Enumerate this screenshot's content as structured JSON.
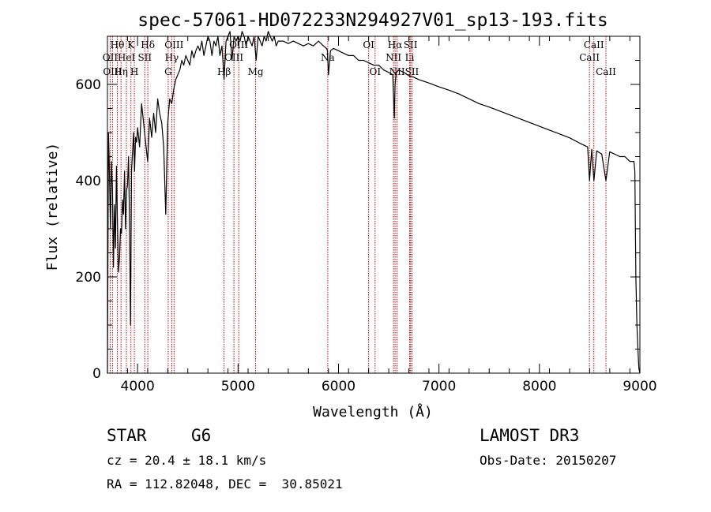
{
  "chart_data": {
    "type": "line",
    "title": "spec-57061-HD072233N294927V01_sp13-193.fits",
    "xlabel": "Wavelength (Å)",
    "ylabel": "Flux (relative)",
    "xlim": [
      3700,
      9000
    ],
    "ylim": [
      0,
      700
    ],
    "x_ticks": [
      4000,
      5000,
      6000,
      7000,
      8000,
      9000
    ],
    "y_ticks": [
      0,
      200,
      400,
      600
    ],
    "series": [
      {
        "name": "flux",
        "x": [
          3700,
          3710,
          3720,
          3730,
          3740,
          3750,
          3760,
          3770,
          3780,
          3790,
          3800,
          3810,
          3820,
          3830,
          3840,
          3850,
          3860,
          3870,
          3880,
          3890,
          3900,
          3910,
          3920,
          3930,
          3940,
          3950,
          3960,
          3970,
          3980,
          3990,
          4000,
          4020,
          4040,
          4060,
          4080,
          4100,
          4120,
          4140,
          4160,
          4180,
          4200,
          4220,
          4240,
          4260,
          4280,
          4300,
          4320,
          4340,
          4360,
          4380,
          4400,
          4420,
          4440,
          4460,
          4480,
          4500,
          4520,
          4540,
          4560,
          4580,
          4600,
          4620,
          4640,
          4660,
          4680,
          4700,
          4720,
          4740,
          4760,
          4780,
          4800,
          4820,
          4840,
          4861,
          4880,
          4900,
          4920,
          4940,
          4960,
          4980,
          5000,
          5020,
          5040,
          5060,
          5080,
          5100,
          5120,
          5140,
          5160,
          5180,
          5200,
          5220,
          5240,
          5260,
          5280,
          5300,
          5320,
          5340,
          5360,
          5380,
          5400,
          5450,
          5500,
          5550,
          5600,
          5650,
          5700,
          5750,
          5800,
          5850,
          5880,
          5890,
          5900,
          5920,
          5950,
          6000,
          6050,
          6100,
          6150,
          6200,
          6250,
          6300,
          6350,
          6400,
          6450,
          6500,
          6540,
          6555,
          6563,
          6575,
          6600,
          6650,
          6700,
          6750,
          6800,
          6900,
          7000,
          7100,
          7200,
          7300,
          7400,
          7500,
          7600,
          7700,
          7800,
          7900,
          8000,
          8100,
          8200,
          8300,
          8400,
          8480,
          8498,
          8520,
          8542,
          8570,
          8620,
          8662,
          8700,
          8750,
          8800,
          8850,
          8900,
          8940,
          8950,
          8960,
          8970,
          8980,
          8990,
          9000
        ],
        "values": [
          0,
          500,
          420,
          300,
          440,
          380,
          220,
          350,
          260,
          430,
          310,
          210,
          240,
          300,
          290,
          360,
          330,
          420,
          300,
          380,
          390,
          450,
          310,
          100,
          420,
          460,
          500,
          420,
          490,
          480,
          510,
          470,
          560,
          520,
          480,
          440,
          530,
          490,
          540,
          500,
          570,
          540,
          520,
          470,
          330,
          520,
          570,
          560,
          590,
          610,
          620,
          630,
          650,
          640,
          660,
          650,
          640,
          670,
          655,
          670,
          680,
          670,
          690,
          660,
          680,
          700,
          690,
          660,
          690,
          680,
          700,
          660,
          680,
          610,
          690,
          700,
          710,
          650,
          700,
          690,
          700,
          690,
          710,
          700,
          680,
          700,
          690,
          680,
          700,
          650,
          700,
          690,
          680,
          700,
          690,
          710,
          700,
          690,
          700,
          680,
          690,
          690,
          685,
          690,
          685,
          680,
          685,
          680,
          690,
          680,
          675,
          670,
          620,
          670,
          675,
          670,
          665,
          660,
          660,
          650,
          650,
          645,
          640,
          640,
          630,
          625,
          620,
          530,
          600,
          625,
          630,
          625,
          618,
          615,
          610,
          603,
          595,
          588,
          580,
          570,
          560,
          553,
          545,
          537,
          529,
          521,
          513,
          505,
          497,
          489,
          478,
          470,
          400,
          465,
          400,
          462,
          455,
          400,
          460,
          455,
          450,
          450,
          440,
          440,
          420,
          200,
          100,
          50,
          10,
          0
        ]
      }
    ],
    "line_annotations": [
      {
        "label": "Hθ",
        "wavelength": 3798,
        "row": 0
      },
      {
        "label": "OII",
        "wavelength": 3727,
        "row": 1
      },
      {
        "label": "OIII",
        "wavelength": 3750,
        "row": 2
      },
      {
        "label": "K",
        "wavelength": 3934,
        "row": 0
      },
      {
        "label": "HeI",
        "wavelength": 3889,
        "row": 1
      },
      {
        "label": "Hη",
        "wavelength": 3835,
        "row": 2
      },
      {
        "label": "Hδ",
        "wavelength": 4102,
        "row": 0
      },
      {
        "label": "SII",
        "wavelength": 4072,
        "row": 1
      },
      {
        "label": "H",
        "wavelength": 3968,
        "row": 2
      },
      {
        "label": "OIII",
        "wavelength": 4363,
        "row": 0
      },
      {
        "label": "Hγ",
        "wavelength": 4340,
        "row": 1
      },
      {
        "label": "G",
        "wavelength": 4305,
        "row": 2
      },
      {
        "label": "OIII",
        "wavelength": 5007,
        "row": 0
      },
      {
        "label": "OIII",
        "wavelength": 4959,
        "row": 1
      },
      {
        "label": "Hβ",
        "wavelength": 4861,
        "row": 2
      },
      {
        "label": "Mg",
        "wavelength": 5175,
        "row": 2
      },
      {
        "label": "Na",
        "wavelength": 5893,
        "row": 1
      },
      {
        "label": "OI",
        "wavelength": 6300,
        "row": 0
      },
      {
        "label": "OI",
        "wavelength": 6364,
        "row": 2
      },
      {
        "label": "Hα",
        "wavelength": 6563,
        "row": 0
      },
      {
        "label": "SII",
        "wavelength": 6717,
        "row": 0
      },
      {
        "label": "NII",
        "wavelength": 6548,
        "row": 1
      },
      {
        "label": "Li",
        "wavelength": 6708,
        "row": 1
      },
      {
        "label": "NII",
        "wavelength": 6583,
        "row": 2
      },
      {
        "label": "SII",
        "wavelength": 6731,
        "row": 2
      },
      {
        "label": "CaII",
        "wavelength": 8542,
        "row": 0
      },
      {
        "label": "CaII",
        "wavelength": 8498,
        "row": 1
      },
      {
        "label": "CaII",
        "wavelength": 8662,
        "row": 2
      }
    ],
    "marker_lines": [
      3727,
      3750,
      3798,
      3835,
      3889,
      3934,
      3968,
      4072,
      4102,
      4305,
      4340,
      4363,
      4861,
      4959,
      5007,
      5175,
      5893,
      6300,
      6364,
      6548,
      6563,
      6583,
      6708,
      6717,
      6731,
      8498,
      8542,
      8662
    ],
    "line_color": "#000000",
    "marker_color": "#c00000",
    "grid": false,
    "legend": "none"
  },
  "info": {
    "object_type": "STAR",
    "subclass": "G6",
    "survey": "LAMOST DR3",
    "redshift": "cz = 20.4 ± 18.1 km/s",
    "obs_date": "Obs-Date: 20150207",
    "coords": "RA = 112.82048, DEC =  30.85021"
  }
}
